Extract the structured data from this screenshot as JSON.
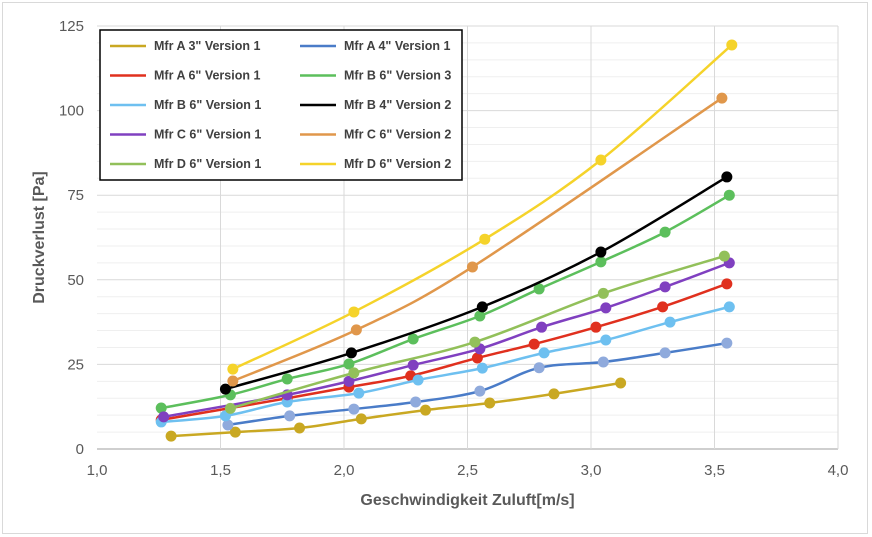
{
  "chart_data": {
    "type": "scatter",
    "xlabel": "Geschwindigkeit Zuluft[m/s]",
    "ylabel": "Druckverlust [Pa]",
    "xlim": [
      1.0,
      4.0
    ],
    "ylim": [
      0,
      125
    ],
    "xticks": [
      "1,0",
      "1,5",
      "2,0",
      "2,5",
      "3,0",
      "3,5",
      "4,0"
    ],
    "yticks": [
      "0",
      "25",
      "50",
      "75",
      "100",
      "125"
    ],
    "grid": true,
    "legend_placement": "top-left",
    "series": [
      {
        "name": "Mfr A 3\" Version 1",
        "color": "#C9A822",
        "x": [
          1.3,
          1.56,
          1.82,
          2.07,
          2.33,
          2.59,
          2.85,
          3.12
        ],
        "y": [
          3.8,
          5.0,
          6.2,
          8.9,
          11.5,
          13.6,
          16.3,
          19.5
        ]
      },
      {
        "name": "Mfr A 4\" Version 1",
        "color": "#4A7CC8",
        "marker_color": "#8FAADC",
        "x": [
          1.53,
          1.78,
          2.04,
          2.29,
          2.55,
          2.79,
          3.05,
          3.3,
          3.55
        ],
        "y": [
          7.1,
          9.8,
          11.8,
          13.9,
          17.1,
          24.0,
          25.7,
          28.4,
          31.3
        ]
      },
      {
        "name": "Mfr A 6\" Version 1",
        "color": "#E0301E",
        "x": [
          1.26,
          1.77,
          2.02,
          2.27,
          2.54,
          2.77,
          3.02,
          3.29,
          3.55
        ],
        "y": [
          8.6,
          15.0,
          18.3,
          21.6,
          26.9,
          31.0,
          36.0,
          42.0,
          48.8
        ]
      },
      {
        "name": "Mfr B 6\" Version 3",
        "color": "#5CBF5C",
        "x": [
          1.26,
          1.54,
          1.77,
          2.02,
          2.28,
          2.55,
          2.79,
          3.04,
          3.3,
          3.56
        ],
        "y": [
          12.1,
          16.0,
          20.7,
          25.1,
          32.5,
          39.3,
          47.3,
          55.3,
          64.1,
          75.0
        ]
      },
      {
        "name": "Mfr B 6\" Version 1",
        "color": "#6EC0F0",
        "x": [
          1.26,
          1.52,
          1.77,
          2.06,
          2.3,
          2.56,
          2.81,
          3.06,
          3.32,
          3.56
        ],
        "y": [
          8.0,
          9.8,
          13.9,
          16.5,
          20.4,
          23.9,
          28.4,
          32.2,
          37.5,
          42.0
        ]
      },
      {
        "name": "Mfr B 4\" Version 2",
        "color": "#000000",
        "x": [
          1.52,
          2.03,
          2.56,
          3.04,
          3.55
        ],
        "y": [
          17.7,
          28.4,
          42.0,
          58.2,
          80.4
        ]
      },
      {
        "name": "Mfr C 6\" Version 1",
        "color": "#8040C0",
        "x": [
          1.27,
          1.77,
          2.02,
          2.28,
          2.55,
          2.8,
          3.06,
          3.3,
          3.56
        ],
        "y": [
          9.5,
          16.0,
          20.0,
          24.8,
          29.6,
          36.0,
          41.7,
          47.9,
          55.0
        ]
      },
      {
        "name": "Mfr C 6\" Version 2",
        "color": "#E0974B",
        "x": [
          1.55,
          2.05,
          2.52,
          3.53
        ],
        "y": [
          20.1,
          35.2,
          53.8,
          103.7
        ]
      },
      {
        "name": "Mfr D 6\" Version 1",
        "color": "#92C05A",
        "x": [
          1.54,
          2.04,
          2.53,
          3.05,
          3.54
        ],
        "y": [
          12.0,
          22.5,
          31.6,
          46.0,
          57.0
        ]
      },
      {
        "name": "Mfr D 6\" Version 2",
        "color": "#F5D32A",
        "x": [
          1.55,
          2.04,
          2.57,
          3.04,
          3.57
        ],
        "y": [
          23.6,
          40.5,
          62.0,
          85.4,
          119.4
        ]
      }
    ]
  }
}
